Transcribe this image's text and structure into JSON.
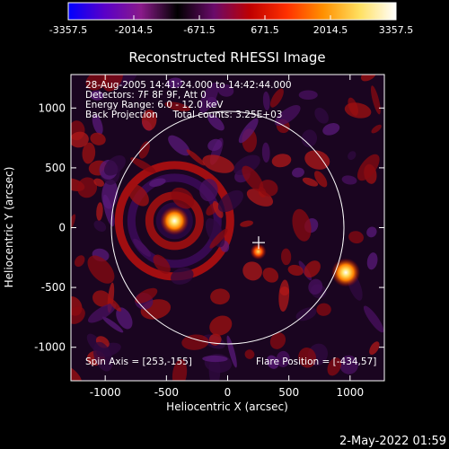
{
  "colorbar": {
    "ticks": [
      "-3357.5",
      "-2014.5",
      "-671.5",
      "671.5",
      "2014.5",
      "3357.5"
    ],
    "colors": [
      "#0000ff",
      "#5a00c8",
      "#8a1a8a",
      "#000000",
      "#6a0a6a",
      "#c00000",
      "#ff3000",
      "#ff9000",
      "#ffe060",
      "#ffffff"
    ]
  },
  "plot": {
    "title": "Reconstructed RHESSI Image",
    "xlabel": "Heliocentric X (arcsec)",
    "ylabel": "Heliocentric Y (arcsec)",
    "x_ticks": [
      "-1000",
      "-500",
      "0",
      "500",
      "1000"
    ],
    "y_ticks": [
      "1000",
      "500",
      "0",
      "-500",
      "-1000"
    ],
    "xlim": [
      -1280,
      1280
    ],
    "ylim": [
      -1280,
      1280
    ],
    "info_lines": [
      "28-Aug-2005 14:41:24.000 to 14:42:44.000",
      "Detectors: 7F 8F 9F, Att 0",
      "Energy Range: 6.0 - 12.0 keV",
      "Back Projection     Total counts: 3.25E+03"
    ],
    "spin_axis": "Spin Axis = [253,-155]",
    "flare_position": "Flare Position = [-434,57]",
    "solar_radius_arcsec": 950,
    "marker_xy": [
      253,
      -155
    ],
    "bright_sources": [
      {
        "x": -434,
        "y": 57,
        "level": "bright"
      },
      {
        "x": 965,
        "y": -375,
        "level": "bright"
      },
      {
        "x": 250,
        "y": -200,
        "level": "medium"
      }
    ]
  },
  "footer": {
    "timestamp": "2-May-2022 01:59"
  }
}
